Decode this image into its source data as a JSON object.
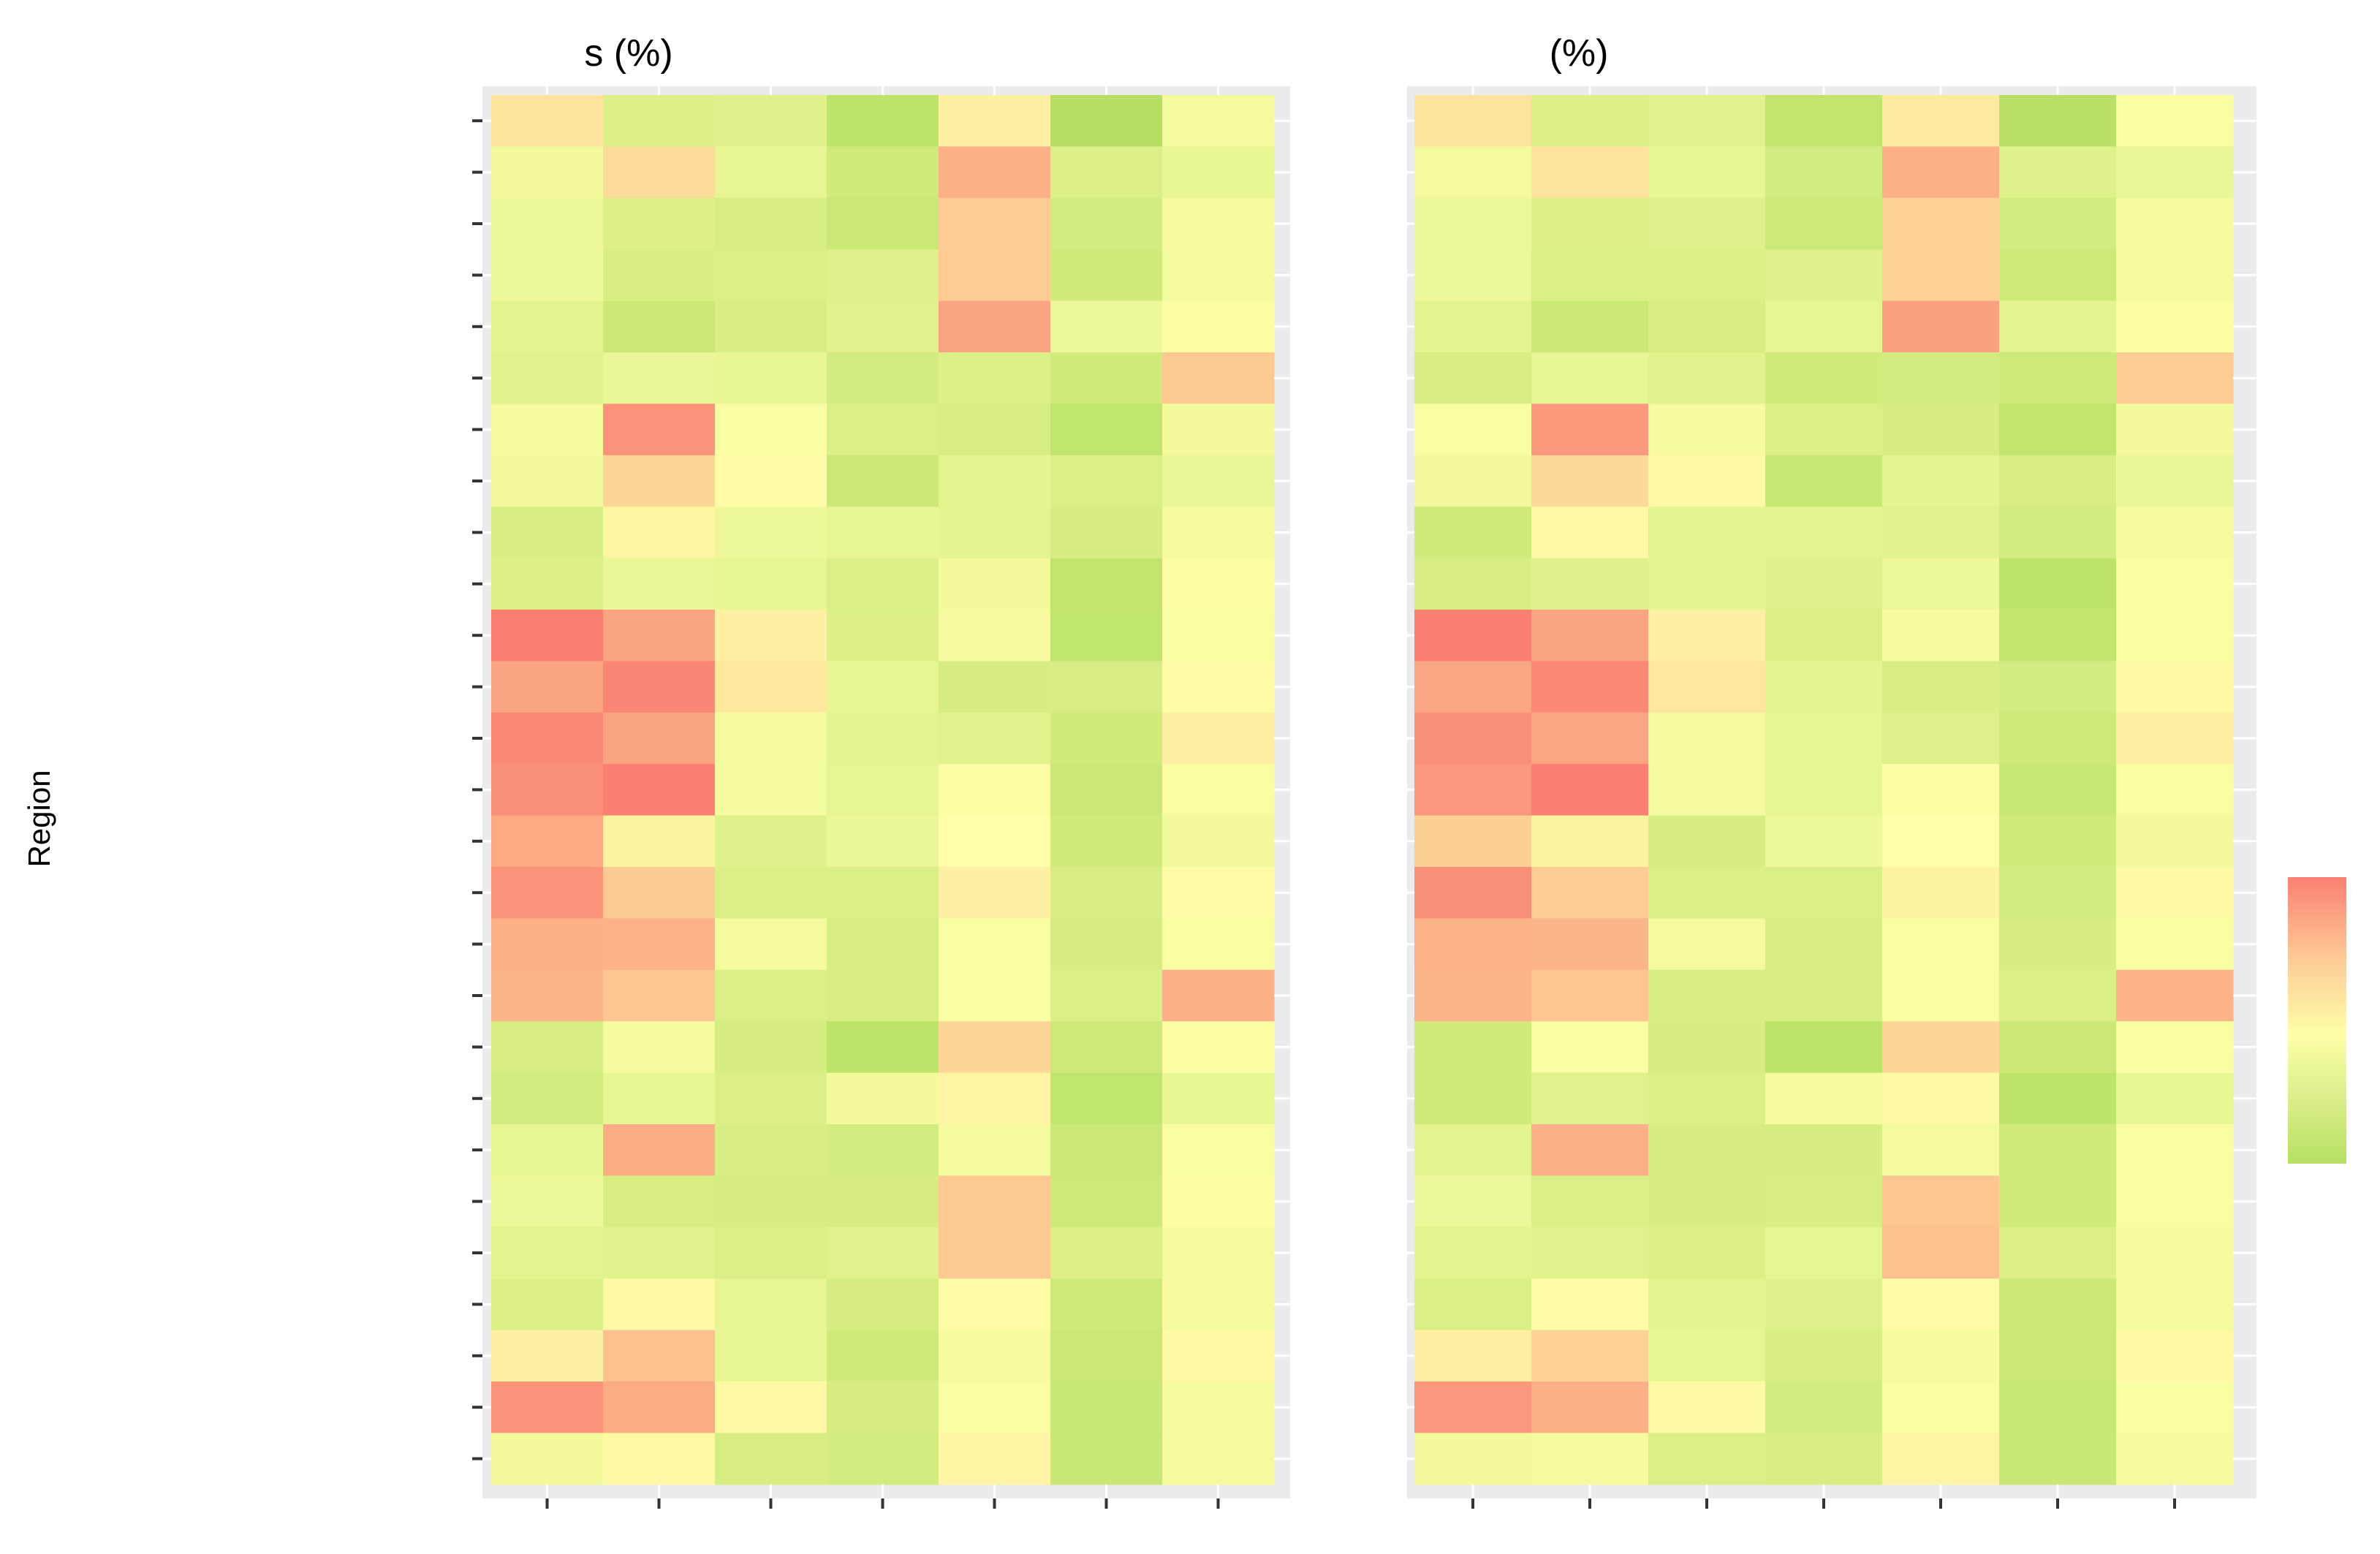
{
  "chart_data": [
    {
      "type": "heatmap",
      "title": "s (%)",
      "ylabel": "Region",
      "xlabel": "",
      "row_count": 27,
      "column_count": 7,
      "x_tick_labels": [],
      "y_tick_labels": [],
      "grid": true,
      "color_scale": {
        "low": "#b6df63",
        "mid": "#feffa8",
        "high": "#fa8072"
      },
      "values": [
        [
          0.22,
          -0.32,
          -0.3,
          -0.62,
          0.12,
          -0.7,
          -0.1
        ],
        [
          -0.12,
          0.28,
          -0.22,
          -0.45,
          0.62,
          -0.32,
          -0.2
        ],
        [
          -0.15,
          -0.32,
          -0.38,
          -0.5,
          0.4,
          -0.42,
          -0.08
        ],
        [
          -0.15,
          -0.38,
          -0.35,
          -0.3,
          0.4,
          -0.45,
          -0.1
        ],
        [
          -0.25,
          -0.5,
          -0.38,
          -0.28,
          0.72,
          -0.15,
          -0.02
        ],
        [
          -0.28,
          -0.18,
          -0.22,
          -0.42,
          -0.35,
          -0.45,
          0.42
        ],
        [
          -0.08,
          0.85,
          -0.05,
          -0.35,
          -0.38,
          -0.6,
          -0.12
        ],
        [
          -0.12,
          0.32,
          0.02,
          -0.5,
          -0.25,
          -0.35,
          -0.18
        ],
        [
          -0.38,
          0.08,
          -0.15,
          -0.22,
          -0.25,
          -0.4,
          -0.08
        ],
        [
          -0.32,
          -0.18,
          -0.22,
          -0.35,
          -0.12,
          -0.58,
          -0.02
        ],
        [
          1.0,
          0.72,
          0.12,
          -0.32,
          -0.08,
          -0.6,
          -0.05
        ],
        [
          0.72,
          0.95,
          0.18,
          -0.22,
          -0.4,
          -0.38,
          0.02
        ],
        [
          0.92,
          0.72,
          -0.1,
          -0.25,
          -0.28,
          -0.45,
          0.12
        ],
        [
          0.88,
          1.0,
          -0.1,
          -0.22,
          -0.02,
          -0.5,
          -0.05
        ],
        [
          0.68,
          0.1,
          -0.3,
          -0.18,
          0.0,
          -0.45,
          -0.12
        ],
        [
          0.85,
          0.42,
          -0.35,
          -0.35,
          0.12,
          -0.38,
          0.02
        ],
        [
          0.62,
          0.6,
          -0.1,
          -0.38,
          -0.05,
          -0.4,
          -0.05
        ],
        [
          0.58,
          0.45,
          -0.35,
          -0.38,
          -0.05,
          -0.35,
          0.62
        ],
        [
          -0.38,
          -0.08,
          -0.4,
          -0.62,
          0.32,
          -0.48,
          -0.02
        ],
        [
          -0.42,
          -0.22,
          -0.32,
          -0.12,
          0.08,
          -0.6,
          -0.2
        ],
        [
          -0.22,
          0.65,
          -0.38,
          -0.42,
          -0.1,
          -0.5,
          -0.05
        ],
        [
          -0.15,
          -0.38,
          -0.4,
          -0.4,
          0.42,
          -0.48,
          -0.02
        ],
        [
          -0.25,
          -0.28,
          -0.35,
          -0.28,
          0.42,
          -0.32,
          -0.1
        ],
        [
          -0.32,
          0.05,
          -0.22,
          -0.4,
          0.02,
          -0.48,
          -0.08
        ],
        [
          0.12,
          0.5,
          -0.2,
          -0.45,
          -0.08,
          -0.5,
          0.05
        ],
        [
          0.85,
          0.65,
          0.05,
          -0.4,
          -0.05,
          -0.52,
          -0.08
        ],
        [
          -0.12,
          0.05,
          -0.38,
          -0.42,
          0.08,
          -0.52,
          -0.1
        ]
      ]
    },
    {
      "type": "heatmap",
      "title": "(%)",
      "ylabel": "",
      "xlabel": "",
      "row_count": 27,
      "column_count": 7,
      "x_tick_labels": [],
      "y_tick_labels": [],
      "grid": true,
      "color_scale": {
        "low": "#b6df63",
        "mid": "#feffa8",
        "high": "#fa8072"
      },
      "values": [
        [
          0.22,
          -0.32,
          -0.28,
          -0.58,
          0.15,
          -0.68,
          -0.05
        ],
        [
          -0.1,
          0.22,
          -0.22,
          -0.42,
          0.62,
          -0.3,
          -0.18
        ],
        [
          -0.15,
          -0.32,
          -0.3,
          -0.48,
          0.35,
          -0.42,
          -0.08
        ],
        [
          -0.15,
          -0.35,
          -0.35,
          -0.3,
          0.35,
          -0.48,
          -0.08
        ],
        [
          -0.25,
          -0.5,
          -0.38,
          -0.22,
          0.75,
          -0.25,
          -0.02
        ],
        [
          -0.38,
          -0.22,
          -0.28,
          -0.45,
          -0.42,
          -0.48,
          0.4
        ],
        [
          -0.05,
          0.8,
          -0.08,
          -0.35,
          -0.4,
          -0.58,
          -0.12
        ],
        [
          -0.12,
          0.3,
          0.05,
          -0.52,
          -0.25,
          -0.38,
          -0.18
        ],
        [
          -0.45,
          0.05,
          -0.25,
          -0.25,
          -0.28,
          -0.42,
          -0.08
        ],
        [
          -0.38,
          -0.3,
          -0.25,
          -0.3,
          -0.15,
          -0.62,
          -0.05
        ],
        [
          1.0,
          0.72,
          0.12,
          -0.32,
          -0.08,
          -0.58,
          -0.05
        ],
        [
          0.7,
          0.92,
          0.2,
          -0.25,
          -0.38,
          -0.42,
          0.05
        ],
        [
          0.88,
          0.7,
          -0.1,
          -0.22,
          -0.3,
          -0.48,
          0.12
        ],
        [
          0.82,
          1.0,
          -0.1,
          -0.22,
          -0.02,
          -0.52,
          -0.05
        ],
        [
          0.38,
          0.1,
          -0.4,
          -0.15,
          0.0,
          -0.45,
          -0.12
        ],
        [
          0.88,
          0.4,
          -0.35,
          -0.35,
          0.1,
          -0.42,
          0.05
        ],
        [
          0.6,
          0.58,
          -0.1,
          -0.38,
          -0.05,
          -0.4,
          -0.05
        ],
        [
          0.58,
          0.45,
          -0.38,
          -0.38,
          -0.05,
          -0.35,
          0.6
        ],
        [
          -0.45,
          -0.05,
          -0.4,
          -0.62,
          0.32,
          -0.5,
          -0.05
        ],
        [
          -0.45,
          -0.28,
          -0.35,
          -0.08,
          0.05,
          -0.62,
          -0.2
        ],
        [
          -0.25,
          0.62,
          -0.4,
          -0.4,
          -0.1,
          -0.45,
          -0.05
        ],
        [
          -0.15,
          -0.35,
          -0.4,
          -0.38,
          0.45,
          -0.45,
          -0.05
        ],
        [
          -0.25,
          -0.28,
          -0.32,
          -0.22,
          0.5,
          -0.32,
          -0.08
        ],
        [
          -0.35,
          0.02,
          -0.25,
          -0.3,
          0.02,
          -0.5,
          -0.1
        ],
        [
          0.12,
          0.35,
          -0.22,
          -0.38,
          -0.08,
          -0.5,
          0.05
        ],
        [
          0.82,
          0.62,
          0.05,
          -0.42,
          -0.05,
          -0.52,
          -0.05
        ],
        [
          -0.12,
          -0.1,
          -0.35,
          -0.38,
          0.08,
          -0.52,
          -0.08
        ]
      ]
    }
  ],
  "legend": {
    "type": "colorbar",
    "colors": [
      "#fa8072",
      "#fdc996",
      "#feffa8",
      "#dff08e",
      "#b6df63"
    ]
  }
}
